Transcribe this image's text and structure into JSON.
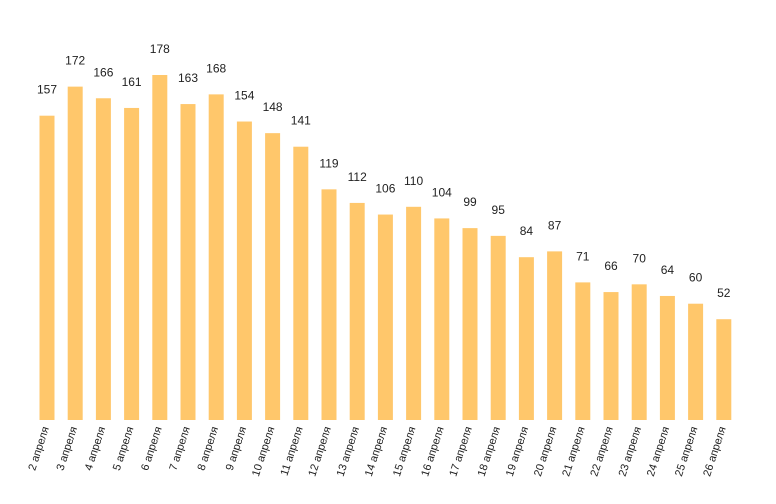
{
  "chart_data": {
    "type": "bar",
    "title": "",
    "xlabel": "",
    "ylabel": "",
    "bar_color": "#FFC76B",
    "label_color": "#222222",
    "grid": false,
    "ylim": [
      0,
      178
    ],
    "categories": [
      "2 апреля",
      "3 апреля",
      "4 апреля",
      "5 апреля",
      "6 апреля",
      "7 апреля",
      "8 апреля",
      "9 апреля",
      "10 апреля",
      "11 апреля",
      "12 апреля",
      "13 апреля",
      "14 апреля",
      "15 апреля",
      "16 апреля",
      "17 апреля",
      "18 апреля",
      "19 апреля",
      "20 апреля",
      "21 апреля",
      "22 апреля",
      "23 апреля",
      "24 апреля",
      "25 апреля",
      "26 апреля"
    ],
    "values": [
      157,
      172,
      166,
      161,
      178,
      163,
      168,
      154,
      148,
      141,
      119,
      112,
      106,
      110,
      104,
      99,
      95,
      84,
      87,
      71,
      66,
      70,
      64,
      60,
      52
    ]
  }
}
